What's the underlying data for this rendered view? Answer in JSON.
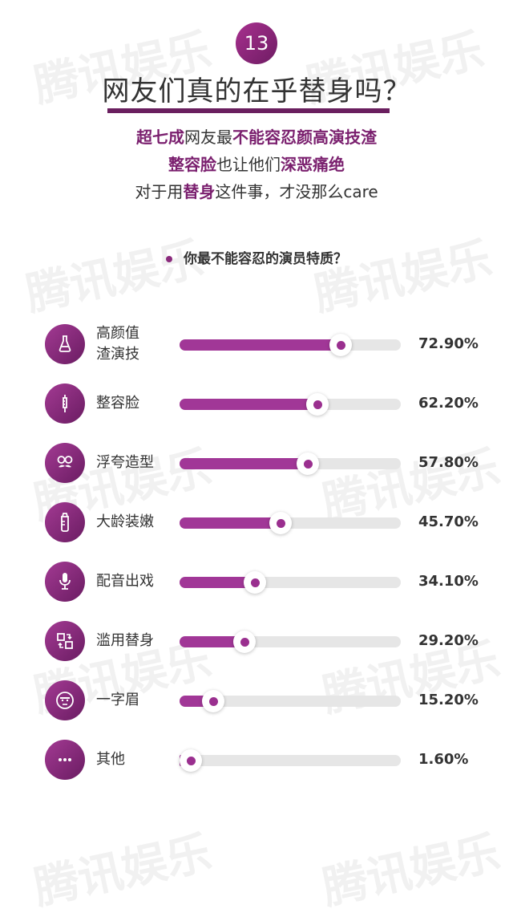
{
  "watermark": "腾讯娱乐",
  "badge_number": "13",
  "title": "网友们真的在乎替身吗？",
  "subtitle": {
    "line1": [
      {
        "text": "超七成",
        "bold": true
      },
      {
        "text": "网友最",
        "bold": false
      },
      {
        "text": "不能容忍颜高演技渣",
        "bold": true
      }
    ],
    "line2": [
      {
        "text": "整容脸",
        "bold": true
      },
      {
        "text": "也让他们",
        "bold": false
      },
      {
        "text": "深恶痛绝",
        "bold": true
      }
    ],
    "line3": [
      {
        "text": "对于用",
        "bold": false
      },
      {
        "text": "替身",
        "bold": true
      },
      {
        "text": "这件事，才没那么care",
        "bold": false
      }
    ]
  },
  "chart_data": {
    "type": "bar",
    "title": "你最不能容忍的演员特质？",
    "categories": [
      "高颜值渣演技",
      "整容脸",
      "浮夸造型",
      "大龄装嫩",
      "配音出戏",
      "滥用替身",
      "一字眉",
      "其他"
    ],
    "labels_display": [
      [
        "高颜值",
        "渣演技"
      ],
      [
        "整容脸"
      ],
      [
        "浮夸造型"
      ],
      [
        "大龄装嫩"
      ],
      [
        "配音出戏"
      ],
      [
        "滥用替身"
      ],
      [
        "一字眉"
      ],
      [
        "其他"
      ]
    ],
    "values": [
      72.9,
      62.2,
      57.8,
      45.7,
      34.1,
      29.2,
      15.2,
      1.6
    ],
    "value_labels": [
      "72.90%",
      "62.20%",
      "57.80%",
      "45.70%",
      "34.10%",
      "29.20%",
      "15.20%",
      "1.60%"
    ],
    "icons": [
      "vase-icon",
      "syringe-icon",
      "glasses-mustache-icon",
      "baby-bottle-icon",
      "microphone-icon",
      "swap-icon",
      "unibrow-face-icon",
      "more-dots-icon"
    ],
    "ylim": [
      0,
      100
    ],
    "colors": {
      "fill": "#a13797",
      "track": "#e6e6e6",
      "accent": "#7a1f6e"
    }
  }
}
